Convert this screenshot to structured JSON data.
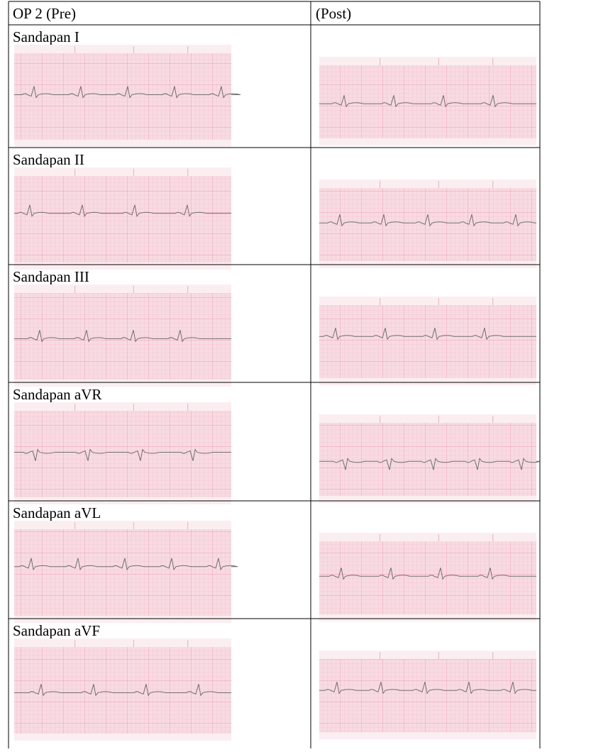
{
  "table": {
    "header": [
      "OP 2 (Pre)",
      "(Post)"
    ],
    "rows": [
      {
        "lead": "Sandapan I"
      },
      {
        "lead": "Sandapan II"
      },
      {
        "lead": "Sandapan III"
      },
      {
        "lead": "Sandapan aVR"
      },
      {
        "lead": "Sandapan aVL"
      },
      {
        "lead": "Sandapan aVF"
      }
    ]
  }
}
